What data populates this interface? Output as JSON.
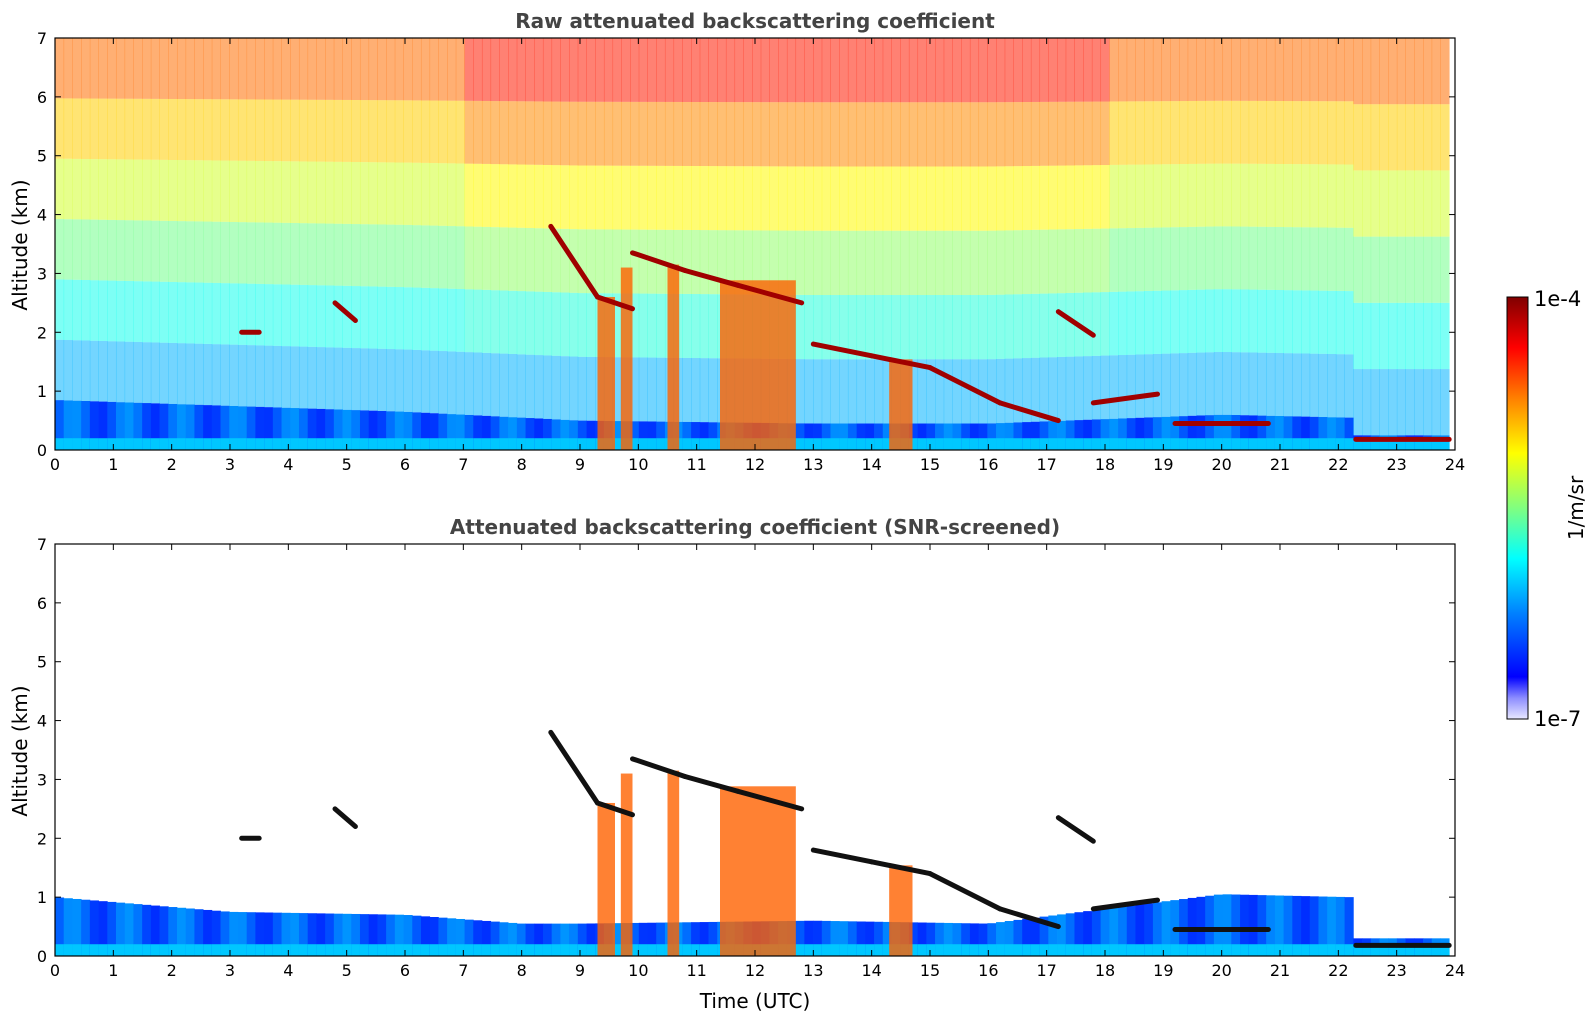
{
  "chart_data": [
    {
      "type": "heatmap",
      "title": "Raw attenuated backscattering coefficient",
      "xlabel": "",
      "ylabel": "Altitude (km)",
      "xlim": [
        0,
        24
      ],
      "ylim": [
        0,
        7
      ],
      "x_ticks": [
        0,
        1,
        2,
        3,
        4,
        5,
        6,
        7,
        8,
        9,
        10,
        11,
        12,
        13,
        14,
        15,
        16,
        17,
        18,
        19,
        20,
        21,
        22,
        23,
        24
      ],
      "y_ticks": [
        0,
        1,
        2,
        3,
        4,
        5,
        6,
        7
      ],
      "noise_floor_top_km": 7.0,
      "data_end_hour": 23.9,
      "boundary_layer_top_km": [
        [
          0,
          0.85
        ],
        [
          3,
          0.75
        ],
        [
          6,
          0.65
        ],
        [
          8,
          0.55
        ],
        [
          9,
          0.5
        ],
        [
          13,
          0.45
        ],
        [
          16,
          0.45
        ],
        [
          20,
          0.6
        ],
        [
          22.2,
          0.55
        ],
        [
          22.3,
          0.25
        ],
        [
          23.9,
          0.25
        ]
      ],
      "cloud_layers_km": [
        {
          "x": [
            3.2,
            3.5
          ],
          "y": [
            2.0,
            2.0
          ]
        },
        {
          "x": [
            4.8,
            5.15
          ],
          "y": [
            2.5,
            2.2
          ]
        },
        {
          "x": [
            8.5,
            9.3
          ],
          "y": [
            3.8,
            2.6
          ]
        },
        {
          "x": [
            9.3,
            9.9
          ],
          "y": [
            2.6,
            2.4
          ]
        },
        {
          "x": [
            9.9,
            10.8
          ],
          "y": [
            3.35,
            3.05
          ]
        },
        {
          "x": [
            10.8,
            11.7
          ],
          "y": [
            3.05,
            2.8
          ]
        },
        {
          "x": [
            11.7,
            12.8
          ],
          "y": [
            2.8,
            2.5
          ]
        },
        {
          "x": [
            13.0,
            14.0
          ],
          "y": [
            1.8,
            1.6
          ]
        },
        {
          "x": [
            14.0,
            15.0
          ],
          "y": [
            1.6,
            1.4
          ]
        },
        {
          "x": [
            15.0,
            16.2
          ],
          "y": [
            1.4,
            0.8
          ]
        },
        {
          "x": [
            16.2,
            17.2
          ],
          "y": [
            0.8,
            0.5
          ]
        },
        {
          "x": [
            17.2,
            17.8
          ],
          "y": [
            2.35,
            1.95
          ]
        },
        {
          "x": [
            17.8,
            18.9
          ],
          "y": [
            0.8,
            0.95
          ]
        },
        {
          "x": [
            19.2,
            20.8
          ],
          "y": [
            0.45,
            0.45
          ]
        },
        {
          "x": [
            22.3,
            23.9
          ],
          "y": [
            0.18,
            0.18
          ]
        }
      ]
    },
    {
      "type": "heatmap",
      "title": "Attenuated backscattering coefficient (SNR-screened)",
      "xlabel": "Time (UTC)",
      "ylabel": "Altitude (km)",
      "xlim": [
        0,
        24
      ],
      "ylim": [
        0,
        7
      ],
      "x_ticks": [
        0,
        1,
        2,
        3,
        4,
        5,
        6,
        7,
        8,
        9,
        10,
        11,
        12,
        13,
        14,
        15,
        16,
        17,
        18,
        19,
        20,
        21,
        22,
        23,
        24
      ],
      "y_ticks": [
        0,
        1,
        2,
        3,
        4,
        5,
        6,
        7
      ],
      "data_end_hour": 23.9,
      "boundary_layer_top_km": [
        [
          0,
          1.0
        ],
        [
          3,
          0.75
        ],
        [
          6,
          0.7
        ],
        [
          8,
          0.55
        ],
        [
          9,
          0.55
        ],
        [
          13,
          0.6
        ],
        [
          16,
          0.55
        ],
        [
          20,
          1.05
        ],
        [
          22.2,
          1.0
        ],
        [
          22.3,
          0.3
        ],
        [
          23.9,
          0.3
        ]
      ]
    }
  ],
  "colorbar": {
    "label": "1/m/sr",
    "max_label": "1e-4",
    "min_label": "1e-7",
    "colormap": "jet"
  }
}
